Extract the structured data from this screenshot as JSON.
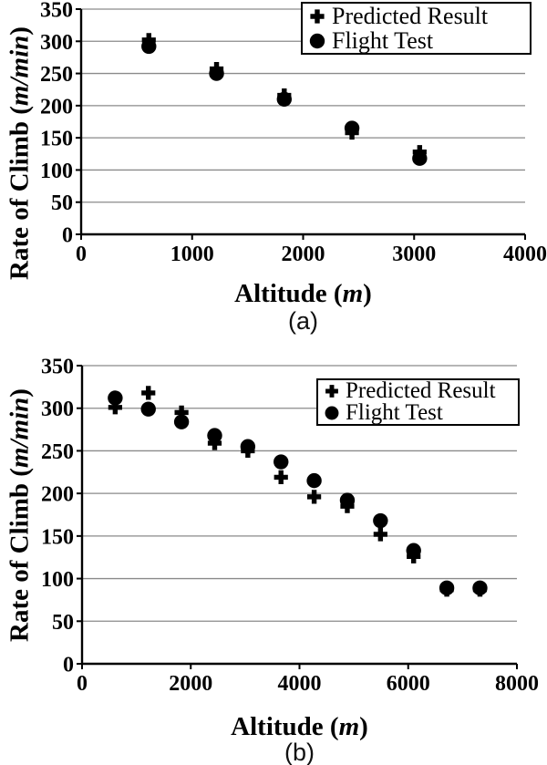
{
  "figure": {
    "background": "#ffffff",
    "colors": {
      "marker": "#000000",
      "gridline": "#8a8a8a",
      "axis": "#000000",
      "legend_border": "#000000",
      "legend_background": "#ffffff"
    }
  },
  "chart_data": [
    {
      "id": "a",
      "type": "scatter",
      "caption": "(a)",
      "xlabel": "Altitude (m)",
      "xlabel_parts": {
        "prefix": "Altitude (",
        "unit": "m",
        "suffix": ")"
      },
      "ylabel": "Rate of Climb (m/min)",
      "ylabel_parts": {
        "prefix": "Rate of Climb (",
        "unit": "m/min",
        "suffix": ")"
      },
      "xlim": [
        0,
        4000
      ],
      "ylim": [
        0,
        350
      ],
      "x_ticks": [
        0,
        1000,
        2000,
        3000,
        4000
      ],
      "y_ticks": [
        0,
        50,
        100,
        150,
        200,
        250,
        300,
        350
      ],
      "grid": "horizontal-only",
      "legend_position": "top-right",
      "x": [
        610,
        1220,
        1830,
        2440,
        3050
      ],
      "series": [
        {
          "name": "Predicted Result",
          "marker": "plus",
          "values": [
            302,
            257,
            216,
            158,
            128
          ]
        },
        {
          "name": "Flight Test",
          "marker": "circle",
          "values": [
            292,
            250,
            210,
            165,
            118
          ]
        }
      ]
    },
    {
      "id": "b",
      "type": "scatter",
      "caption": "(b)",
      "xlabel": "Altitude (m)",
      "xlabel_parts": {
        "prefix": "Altitude (",
        "unit": "m",
        "suffix": ")"
      },
      "ylabel": "Rate of Climb (m/min)",
      "ylabel_parts": {
        "prefix": "Rate of Climb (",
        "unit": "m/min",
        "suffix": ")"
      },
      "xlim": [
        0,
        8000
      ],
      "ylim": [
        0,
        350
      ],
      "x_ticks": [
        0,
        2000,
        4000,
        6000,
        8000
      ],
      "y_ticks": [
        0,
        50,
        100,
        150,
        200,
        250,
        300,
        350
      ],
      "grid": "horizontal-only",
      "legend_position": "top-right",
      "x": [
        610,
        1220,
        1830,
        2440,
        3050,
        3660,
        4270,
        4880,
        5490,
        6100,
        6710,
        7320
      ],
      "series": [
        {
          "name": "Predicted Result",
          "marker": "plus",
          "values": [
            301,
            318,
            295,
            259,
            250,
            219,
            196,
            185,
            152,
            126,
            87,
            87
          ]
        },
        {
          "name": "Flight Test",
          "marker": "circle",
          "values": [
            312,
            299,
            284,
            268,
            255,
            237,
            215,
            192,
            168,
            133,
            89,
            89
          ]
        }
      ]
    }
  ]
}
